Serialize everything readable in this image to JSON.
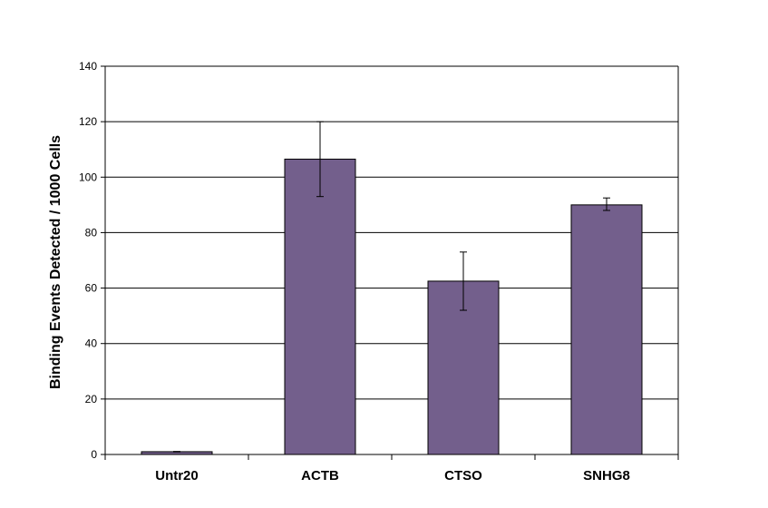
{
  "chart_data": {
    "type": "bar",
    "title": "",
    "xlabel": "",
    "ylabel": "Binding Events Detected / 1000 Cells",
    "categories": [
      "Untr20",
      "ACTB",
      "CTSO",
      "SNHG8"
    ],
    "values": [
      1,
      106.5,
      62.5,
      90
    ],
    "error_low": [
      0.9,
      93,
      52,
      88
    ],
    "error_high": [
      1.1,
      120,
      73,
      92.5
    ],
    "ylim": [
      0,
      140
    ],
    "yticks": [
      "0",
      "20",
      "40",
      "60",
      "80",
      "100",
      "120",
      "140"
    ],
    "grid": true,
    "legend": "none",
    "colors": {
      "bar": "#735f8c",
      "bar_stroke": "#000000",
      "grid": "#000000",
      "axis": "#000000"
    }
  }
}
